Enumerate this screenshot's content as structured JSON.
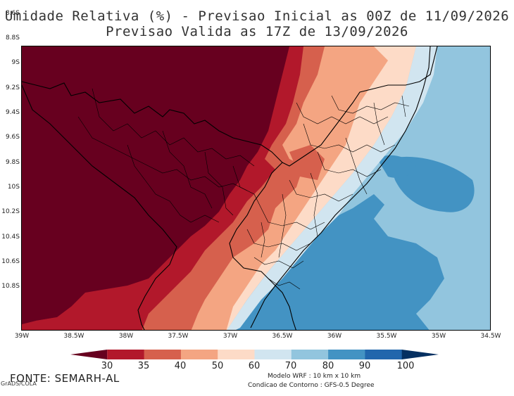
{
  "title_line1": "Umidade Relativa (%) - Previsao Inicial as 00Z de 11/09/2026",
  "title_line2": "Previsao Valida as 17Z de 13/09/2026",
  "y_axis_labels": [
    "8.6S",
    "8.8S",
    "9S",
    "9.2S",
    "9.4S",
    "9.6S",
    "9.8S",
    "10S",
    "10.2S",
    "10.4S",
    "10.6S",
    "10.8S"
  ],
  "x_axis_labels": [
    "39W",
    "38.5W",
    "38W",
    "37.5W",
    "37W",
    "36.5W",
    "36W",
    "35.5W",
    "35W",
    "34.5W"
  ],
  "colorbar": {
    "labels": [
      "30",
      "35",
      "40",
      "50",
      "60",
      "70",
      "80",
      "90",
      "100"
    ],
    "colors": [
      "#67001f",
      "#b2182b",
      "#d6604d",
      "#f4a582",
      "#fddbc7",
      "#d1e5f0",
      "#92c5de",
      "#4393c3",
      "#2166ac",
      "#053061"
    ]
  },
  "fonte": "FONTE: SEMARH-AL",
  "grads": "GrADS/COLA",
  "note1": "Modelo WRF : 10 km x 10 km",
  "note2": "Condicao de Contorno : GFS-0.5 Degree"
}
